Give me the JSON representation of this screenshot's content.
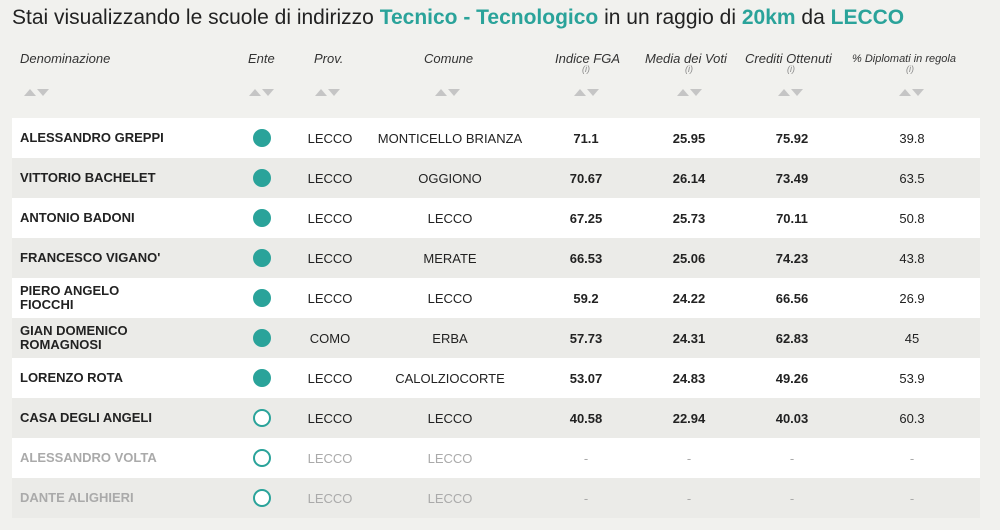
{
  "title": {
    "prefix": "Stai visualizzando le scuole di indirizzo ",
    "indirizzo": "Tecnico - Tecnologico",
    "middle": " in un raggio di ",
    "raggio": "20km",
    "da": " da ",
    "citta": "LECCO"
  },
  "columns": {
    "denominazione": "Denominazione",
    "ente": "Ente",
    "prov": "Prov.",
    "comune": "Comune",
    "indice_fga": "Indice FGA",
    "media_voti": "Media dei Voti",
    "crediti": "Crediti Ottenuti",
    "diplomati": "% Diplomati in regola",
    "info_mark": "(i)"
  },
  "colors": {
    "accent": "#2aa39a"
  },
  "rows": [
    {
      "name": "ALESSANDRO GREPPI",
      "ente": "filled",
      "prov": "LECCO",
      "comune": "MONTICELLO BRIANZA",
      "fga": "71.1",
      "media": "25.95",
      "crediti": "75.92",
      "diplomati": "39.8",
      "muted": false
    },
    {
      "name": "VITTORIO BACHELET",
      "ente": "filled",
      "prov": "LECCO",
      "comune": "OGGIONO",
      "fga": "70.67",
      "media": "26.14",
      "crediti": "73.49",
      "diplomati": "63.5",
      "muted": false
    },
    {
      "name": "ANTONIO BADONI",
      "ente": "filled",
      "prov": "LECCO",
      "comune": "LECCO",
      "fga": "67.25",
      "media": "25.73",
      "crediti": "70.11",
      "diplomati": "50.8",
      "muted": false
    },
    {
      "name": "FRANCESCO VIGANO'",
      "ente": "filled",
      "prov": "LECCO",
      "comune": "MERATE",
      "fga": "66.53",
      "media": "25.06",
      "crediti": "74.23",
      "diplomati": "43.8",
      "muted": false
    },
    {
      "name": "PIERO ANGELO FIOCCHI",
      "ente": "filled",
      "prov": "LECCO",
      "comune": "LECCO",
      "fga": "59.2",
      "media": "24.22",
      "crediti": "66.56",
      "diplomati": "26.9",
      "muted": false
    },
    {
      "name": "GIAN DOMENICO ROMAGNOSI",
      "ente": "filled",
      "prov": "COMO",
      "comune": "ERBA",
      "fga": "57.73",
      "media": "24.31",
      "crediti": "62.83",
      "diplomati": "45",
      "muted": false
    },
    {
      "name": "LORENZO ROTA",
      "ente": "filled",
      "prov": "LECCO",
      "comune": "CALOLZIOCORTE",
      "fga": "53.07",
      "media": "24.83",
      "crediti": "49.26",
      "diplomati": "53.9",
      "muted": false
    },
    {
      "name": "CASA DEGLI ANGELI",
      "ente": "empty",
      "prov": "LECCO",
      "comune": "LECCO",
      "fga": "40.58",
      "media": "22.94",
      "crediti": "40.03",
      "diplomati": "60.3",
      "muted": false
    },
    {
      "name": "ALESSANDRO VOLTA",
      "ente": "empty",
      "prov": "LECCO",
      "comune": "LECCO",
      "fga": "-",
      "media": "-",
      "crediti": "-",
      "diplomati": "-",
      "muted": true
    },
    {
      "name": "DANTE ALIGHIERI",
      "ente": "empty",
      "prov": "LECCO",
      "comune": "LECCO",
      "fga": "-",
      "media": "-",
      "crediti": "-",
      "diplomati": "-",
      "muted": true
    }
  ]
}
